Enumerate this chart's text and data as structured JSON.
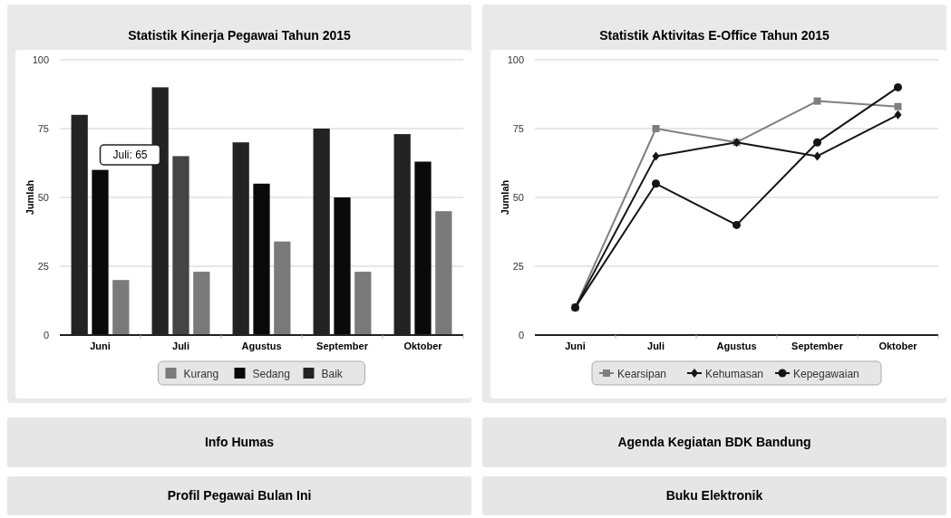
{
  "chart_data": [
    {
      "type": "bar",
      "title": "Statistik Kinerja Pegawai Tahun 2015",
      "ylabel": "Jumlah",
      "categories": [
        "Juni",
        "Juli",
        "Agustus",
        "September",
        "Oktober"
      ],
      "series": [
        {
          "name": "Baik",
          "color": "#232323",
          "values": [
            80,
            90,
            70,
            75,
            73
          ]
        },
        {
          "name": "Sedang",
          "color": "#0a0a0a",
          "colors": [
            "#0a0a0a",
            "#454545",
            "#0a0a0a",
            "#0a0a0a",
            "#0a0a0a"
          ],
          "values": [
            60,
            65,
            55,
            50,
            63
          ]
        },
        {
          "name": "Kurang",
          "color": "#7a7a7a",
          "values": [
            20,
            23,
            34,
            23,
            45
          ]
        }
      ],
      "ylim": [
        0,
        100
      ],
      "yticks": [
        0,
        25,
        50,
        75,
        100
      ],
      "grid": "y",
      "legend": "bottom",
      "annotations": [
        "Juli: 65"
      ]
    },
    {
      "type": "line",
      "title": "Statistik Aktivitas E-Office Tahun 2015",
      "ylabel": "Jumlah",
      "categories": [
        "Juni",
        "Juli",
        "Agustus",
        "September",
        "Oktober"
      ],
      "series": [
        {
          "name": "Kearsipan",
          "color": "#7f7f7f",
          "marker": "square",
          "values": [
            10,
            75,
            70,
            85,
            83
          ]
        },
        {
          "name": "Kehumasan",
          "color": "#151515",
          "marker": "diamond",
          "values": [
            10,
            65,
            70,
            65,
            80
          ]
        },
        {
          "name": "Kepegawaian",
          "color": "#151515",
          "marker": "circle",
          "values": [
            10,
            55,
            40,
            70,
            90
          ]
        }
      ],
      "ylim": [
        0,
        100
      ],
      "yticks": [
        0,
        25,
        50,
        75,
        100
      ],
      "grid": "y",
      "legend": "bottom"
    },
    {
      "type": "other",
      "annotations": [
        "Info Humas",
        "Agenda Kegiatan BDK Bandung",
        "Profil Pegawai Bulan Ini",
        "Buku Elektronik"
      ]
    }
  ]
}
